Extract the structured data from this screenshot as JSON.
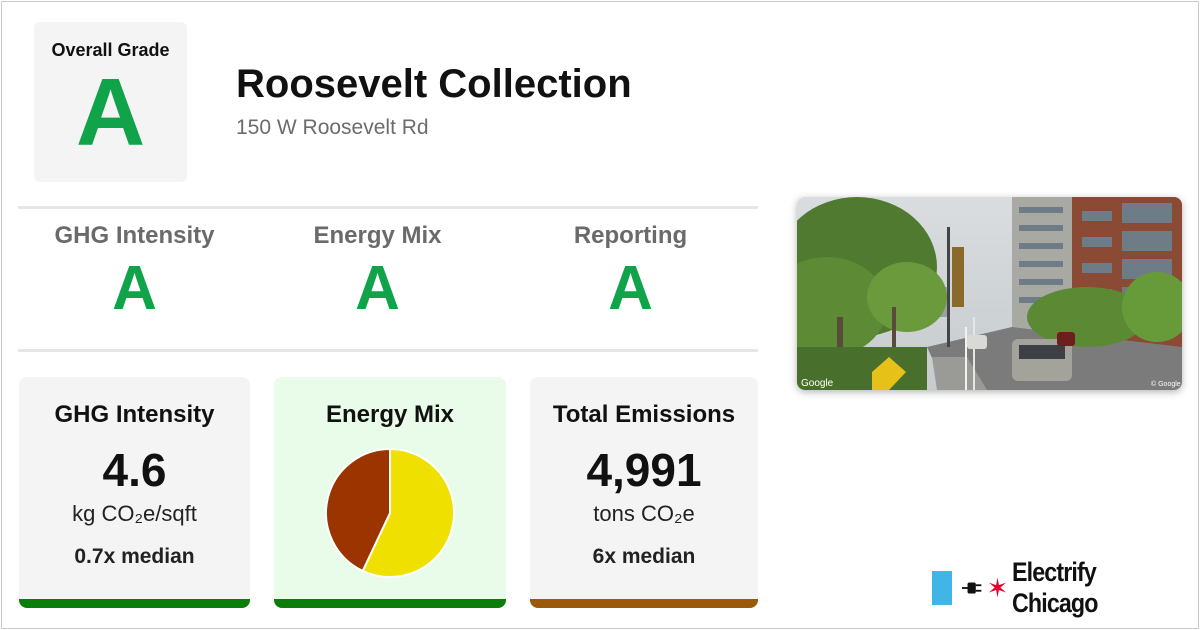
{
  "overall": {
    "label": "Overall Grade",
    "grade": "A"
  },
  "building": {
    "name": "Roosevelt Collection",
    "address": "150 W Roosevelt Rd"
  },
  "subgrades": [
    {
      "label": "GHG Intensity",
      "grade": "A"
    },
    {
      "label": "Energy Mix",
      "grade": "A"
    },
    {
      "label": "Reporting",
      "grade": "A"
    }
  ],
  "cards": {
    "ghg": {
      "title": "GHG Intensity",
      "value": "4.6",
      "unit": "kg CO₂e/sqft",
      "median": "0.7x median",
      "bar_color": "#0a7d0a"
    },
    "mix": {
      "title": "Energy Mix",
      "bar_color": "#0a7d0a"
    },
    "emissions": {
      "title": "Total Emissions",
      "value": "4,991",
      "unit": "tons CO₂e",
      "median": "6x median",
      "bar_color": "#9b5a0a"
    }
  },
  "chart_data": {
    "type": "pie",
    "categories": [
      "",
      ""
    ],
    "values": [
      57,
      43
    ],
    "colors": [
      "#f0e000",
      "#9c3400"
    ]
  },
  "photo": {
    "attribution_left": "Google",
    "attribution_right": "© Google"
  },
  "brand": {
    "name": "Electrify Chicago",
    "accent": "#41b6e6",
    "star_color": "#e4002b"
  },
  "colors": {
    "grade_green": "#10a34a"
  }
}
